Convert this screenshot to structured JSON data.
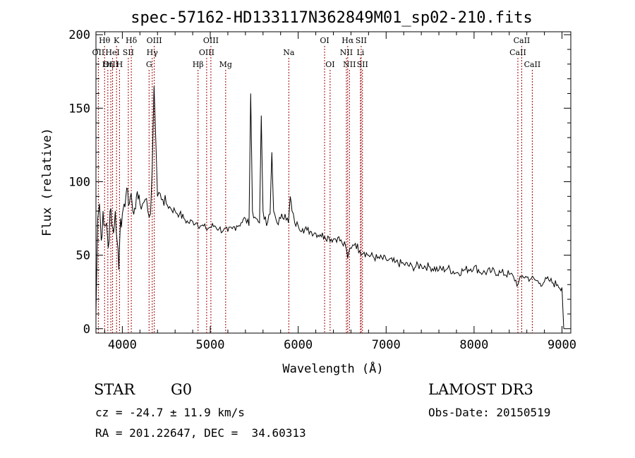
{
  "chart_data": {
    "type": "line",
    "title": "spec-57162-HD133117N362849M01_sp02-210.fits",
    "xlabel": "Wavelength (Å)",
    "ylabel": "Flux (relative)",
    "xlim": [
      3700,
      9100
    ],
    "ylim": [
      -3,
      202
    ],
    "xticks": [
      4000,
      5000,
      6000,
      7000,
      8000,
      9000
    ],
    "yticks": [
      0,
      50,
      100,
      150,
      200
    ],
    "series": [
      {
        "name": "spectrum",
        "x": [
          3700,
          3720,
          3740,
          3760,
          3780,
          3800,
          3820,
          3840,
          3860,
          3880,
          3900,
          3920,
          3940,
          3960,
          3980,
          4000,
          4020,
          4040,
          4060,
          4080,
          4100,
          4120,
          4140,
          4160,
          4180,
          4200,
          4230,
          4260,
          4290,
          4320,
          4340,
          4360,
          4380,
          4400,
          4430,
          4460,
          4500,
          4550,
          4600,
          4650,
          4700,
          4750,
          4800,
          4850,
          4900,
          4950,
          5000,
          5050,
          5100,
          5150,
          5200,
          5250,
          5300,
          5350,
          5400,
          5440,
          5460,
          5480,
          5520,
          5560,
          5580,
          5600,
          5640,
          5680,
          5700,
          5720,
          5760,
          5800,
          5850,
          5890,
          5910,
          5930,
          5960,
          6000,
          6050,
          6100,
          6150,
          6200,
          6250,
          6300,
          6350,
          6400,
          6450,
          6500,
          6540,
          6563,
          6590,
          6620,
          6650,
          6700,
          6750,
          6800,
          6900,
          7000,
          7100,
          7200,
          7300,
          7400,
          7500,
          7600,
          7700,
          7800,
          7900,
          8000,
          8100,
          8200,
          8300,
          8400,
          8450,
          8500,
          8550,
          8600,
          8650,
          8700,
          8750,
          8800,
          8850,
          8900,
          8950,
          9000,
          9020
        ],
        "values": [
          10,
          75,
          85,
          60,
          80,
          70,
          72,
          55,
          80,
          70,
          65,
          80,
          60,
          40,
          75,
          78,
          85,
          90,
          95,
          85,
          92,
          80,
          82,
          90,
          88,
          85,
          85,
          88,
          80,
          78,
          110,
          165,
          130,
          90,
          92,
          88,
          85,
          82,
          80,
          78,
          75,
          72,
          73,
          72,
          70,
          68,
          69,
          70,
          68,
          67,
          66,
          68,
          70,
          72,
          75,
          70,
          160,
          80,
          75,
          72,
          145,
          80,
          70,
          78,
          120,
          80,
          72,
          75,
          78,
          72,
          90,
          80,
          72,
          70,
          68,
          67,
          66,
          65,
          64,
          63,
          62,
          61,
          62,
          58,
          56,
          48,
          55,
          57,
          58,
          53,
          52,
          50,
          48,
          47,
          45,
          44,
          42,
          43,
          42,
          40,
          41,
          38,
          40,
          42,
          38,
          39,
          38,
          37,
          35,
          30,
          36,
          35,
          34,
          33,
          31,
          32,
          33,
          31,
          30,
          28,
          0
        ]
      }
    ],
    "spectral_lines": [
      {
        "label": "Hθ",
        "x": 3798,
        "row": 0
      },
      {
        "label": "OII",
        "x": 3727,
        "row": 1
      },
      {
        "label": "OIII",
        "x": 3869,
        "row": 2
      },
      {
        "label": "Hη",
        "x": 3835,
        "row": 2
      },
      {
        "label": "K",
        "x": 3934,
        "row": 0
      },
      {
        "label": "HeI",
        "x": 3889,
        "row": 1
      },
      {
        "label": "H",
        "x": 3968,
        "row": 2
      },
      {
        "label": "Hδ",
        "x": 4102,
        "row": 0
      },
      {
        "label": "SII",
        "x": 4068,
        "row": 1
      },
      {
        "label": "OIII",
        "x": 4363,
        "row": 0
      },
      {
        "label": "Hγ",
        "x": 4340,
        "row": 1
      },
      {
        "label": "G",
        "x": 4304,
        "row": 2
      },
      {
        "label": "Hβ",
        "x": 4861,
        "row": 2
      },
      {
        "label": "OIII",
        "x": 4959,
        "row": 1
      },
      {
        "label": "OIII",
        "x": 5007,
        "row": 0
      },
      {
        "label": "Mg",
        "x": 5175,
        "row": 2
      },
      {
        "label": "Na",
        "x": 5893,
        "row": 1
      },
      {
        "label": "OI",
        "x": 6300,
        "row": 0
      },
      {
        "label": "OI",
        "x": 6363,
        "row": 2
      },
      {
        "label": "Hα",
        "x": 6563,
        "row": 0
      },
      {
        "label": "NII",
        "x": 6548,
        "row": 1
      },
      {
        "label": "NII",
        "x": 6583,
        "row": 2
      },
      {
        "label": "SII",
        "x": 6716,
        "row": 0
      },
      {
        "label": "Li",
        "x": 6708,
        "row": 1
      },
      {
        "label": "SII",
        "x": 6731,
        "row": 2
      },
      {
        "label": "CaII",
        "x": 8542,
        "row": 0
      },
      {
        "label": "CaII",
        "x": 8498,
        "row": 1
      },
      {
        "label": "CaII",
        "x": 8662,
        "row": 2
      }
    ]
  },
  "info": {
    "object_type": "STAR",
    "subclass": "G0",
    "survey": "LAMOST DR3",
    "cz": "cz = -24.7 ± 11.9 km/s",
    "obs_date": "Obs-Date: 20150519",
    "coords": "RA = 201.22647, DEC =  34.60313"
  }
}
